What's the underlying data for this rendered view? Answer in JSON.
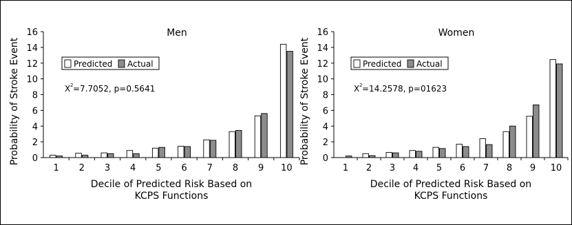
{
  "chart_data": [
    {
      "type": "bar",
      "title": "Men",
      "categories": [
        "1",
        "2",
        "3",
        "4",
        "5",
        "6",
        "7",
        "8",
        "9",
        "10"
      ],
      "series": [
        {
          "name": "Predicted",
          "values": [
            0.3,
            0.55,
            0.6,
            0.9,
            1.2,
            1.45,
            2.25,
            3.3,
            5.3,
            14.4
          ]
        },
        {
          "name": "Actual",
          "values": [
            0.2,
            0.3,
            0.5,
            0.5,
            1.3,
            1.4,
            2.2,
            3.45,
            5.6,
            13.5
          ]
        }
      ],
      "annotation": {
        "prefix": "X",
        "superscript": "2",
        "text": "=7.7052, p=0.5641"
      },
      "xlabel": [
        "Decile of Predicted Risk Based on",
        "KCPS Functions"
      ],
      "ylabel": "Probability of Stroke Event",
      "ylim": [
        0,
        16
      ],
      "yticks": [
        0,
        2,
        4,
        6,
        8,
        10,
        12,
        14,
        16
      ],
      "grid": false,
      "legend": "top-left",
      "colors": {
        "Predicted": "#ffffff",
        "Actual": "#8c8c8c"
      }
    },
    {
      "type": "bar",
      "title": "Women",
      "categories": [
        "1",
        "2",
        "3",
        "4",
        "5",
        "6",
        "7",
        "8",
        "9",
        "10"
      ],
      "series": [
        {
          "name": "Predicted",
          "values": [
            0.0,
            0.5,
            0.65,
            0.9,
            1.3,
            1.7,
            2.4,
            3.3,
            5.25,
            12.45
          ]
        },
        {
          "name": "Actual",
          "values": [
            0.2,
            0.25,
            0.6,
            0.8,
            1.15,
            1.4,
            1.65,
            4.0,
            6.7,
            11.9
          ]
        }
      ],
      "annotation": {
        "prefix": "X",
        "superscript": "2",
        "text": "=14.2578, p=01623"
      },
      "xlabel": [
        "Decile of Predicted Risk Based on",
        "KCPS Functions"
      ],
      "ylabel": "Probability of Stroke Event",
      "ylim": [
        0,
        16
      ],
      "yticks": [
        0,
        2,
        4,
        6,
        8,
        10,
        12,
        14,
        16
      ],
      "grid": false,
      "legend": "top-left",
      "colors": {
        "Predicted": "#ffffff",
        "Actual": "#8c8c8c"
      }
    }
  ]
}
